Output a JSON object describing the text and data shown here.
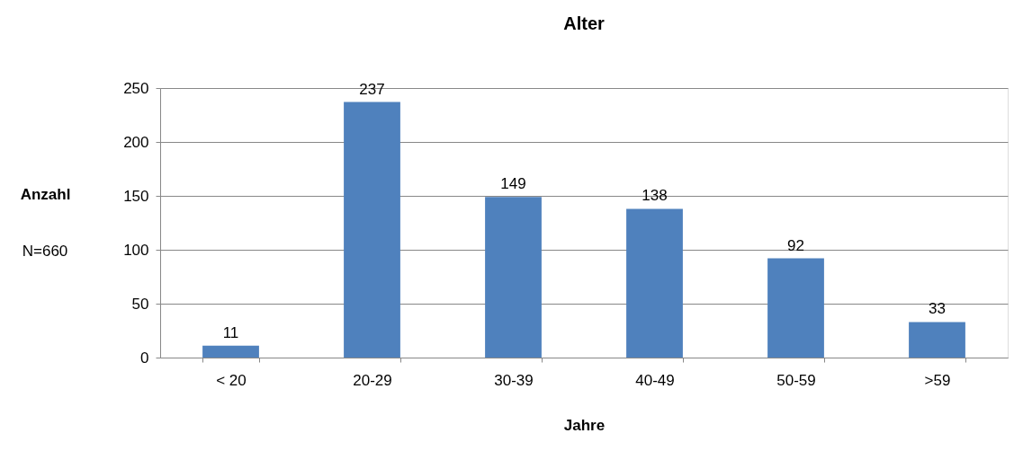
{
  "chart_data": {
    "type": "bar",
    "title": "Alter",
    "xlabel": "Jahre",
    "ylabel": "Anzahl",
    "annotations": [
      "N=660"
    ],
    "categories": [
      "< 20",
      "20-29",
      "30-39",
      "40-49",
      "50-59",
      ">59"
    ],
    "values": [
      11,
      237,
      149,
      138,
      92,
      33
    ],
    "color": "#4f81bd",
    "ylim": [
      0,
      250
    ],
    "yticks": [
      0,
      50,
      100,
      150,
      200,
      250
    ],
    "grid": "y",
    "data_labels": true
  }
}
